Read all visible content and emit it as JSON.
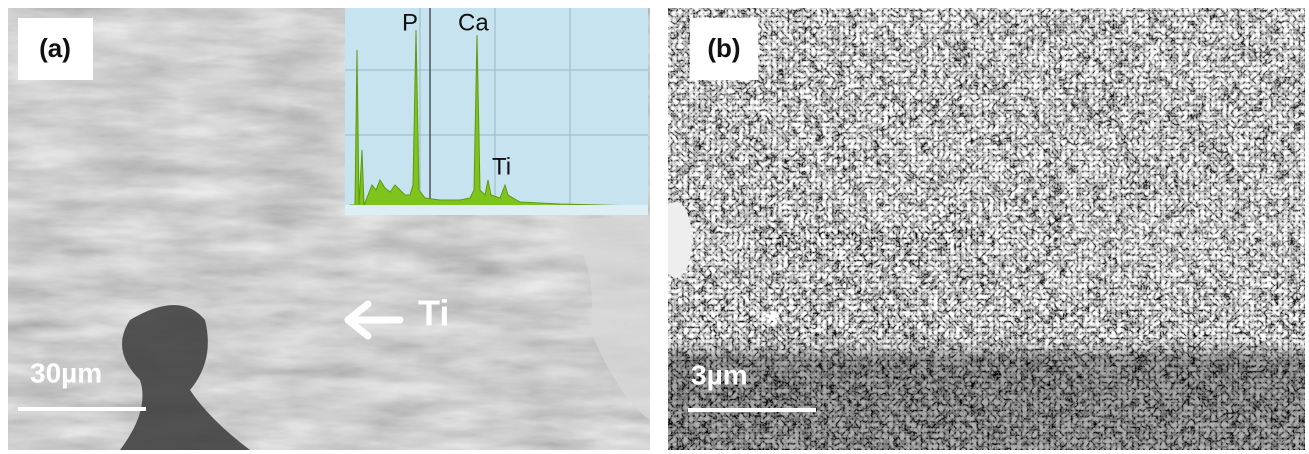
{
  "panels": [
    {
      "label": "(a)",
      "scale_bar": "30µm",
      "annotation": "Ti",
      "inset": {
        "peaks": [
          "P",
          "Ca",
          "Ti"
        ]
      }
    },
    {
      "label": "(b)",
      "scale_bar": "3µm",
      "annotation": "*"
    }
  ]
}
